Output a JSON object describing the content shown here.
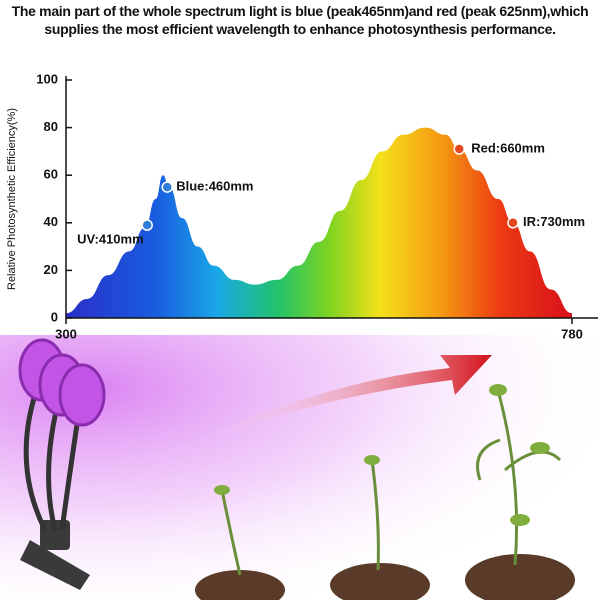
{
  "chart_data": {
    "type": "area",
    "title": "The main part of the whole spectrum light is blue (peak465nm)and red (peak 625nm),which supplies the most efficient wavelength to enhance photosynthesis performance.",
    "ylabel": "Relative Photosynthetic Efficiency(%)",
    "x": [
      300,
      320,
      340,
      360,
      375,
      385,
      392,
      398,
      410,
      425,
      440,
      460,
      479,
      500,
      520,
      540,
      560,
      580,
      600,
      620,
      641,
      660,
      673,
      690,
      710,
      724,
      740,
      760,
      780
    ],
    "values": [
      2,
      8,
      18,
      28,
      38,
      50,
      60,
      55,
      42,
      30,
      22,
      16,
      14,
      16,
      22,
      32,
      45,
      58,
      70,
      77,
      80,
      77,
      71,
      62,
      50,
      40,
      28,
      12,
      2
    ],
    "xlim": [
      300,
      780
    ],
    "xticks": [
      300,
      780
    ],
    "ylim": [
      0,
      100
    ],
    "yticks": [
      0,
      20,
      40,
      60,
      80,
      100
    ],
    "annotations": [
      {
        "text": "UV:410mm",
        "x": 377,
        "y": 39,
        "color": "#2f7fd8"
      },
      {
        "text": "Blue:460mm",
        "x": 396,
        "y": 55,
        "color": "#2f7fd8"
      },
      {
        "text": "Red:660mm",
        "x": 673,
        "y": 71,
        "color": "#e2481c"
      },
      {
        "text": "IR:730mm",
        "x": 724,
        "y": 40,
        "color": "#e2481c"
      }
    ]
  }
}
